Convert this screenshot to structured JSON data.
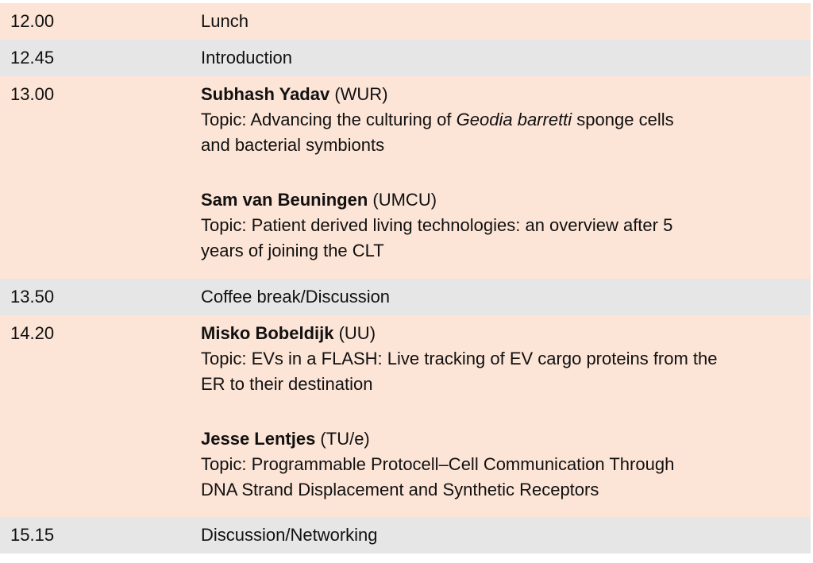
{
  "colors": {
    "session_row": "#fce4d6",
    "break_row": "#e7e6e6"
  },
  "rows": [
    {
      "time": "12.00",
      "title": "Lunch"
    },
    {
      "time": "12.45",
      "title": "Introduction"
    },
    {
      "time": "13.00",
      "talks": [
        {
          "speaker": "Subhash Yadav",
          "affiliation": " (WUR)",
          "topic_line1_a": "Topic: Advancing the culturing of ",
          "topic_line1_italic": "Geodia barretti",
          "topic_line1_b": " sponge cells",
          "topic_line2": "and bacterial symbionts"
        },
        {
          "speaker": "Sam van Beuningen",
          "affiliation": " (UMCU)",
          "topic_line1": "Topic: Patient derived living technologies: an overview after 5",
          "topic_line2": "years of joining the CLT"
        }
      ]
    },
    {
      "time": "13.50",
      "title": "Coffee break/Discussion"
    },
    {
      "time": "14.20",
      "talks": [
        {
          "speaker": "Misko Bobeldijk",
          "affiliation": " (UU)",
          "topic_line1": "Topic: EVs in a FLASH: Live tracking of EV cargo proteins from the",
          "topic_line2": "ER to their destination"
        },
        {
          "speaker": "Jesse Lentjes",
          "affiliation": " (TU/e)",
          "topic_line1": "Topic: Programmable Protocell–Cell Communication Through",
          "topic_line2": "DNA Strand Displacement and Synthetic Receptors"
        }
      ]
    },
    {
      "time": "15.15",
      "title": "Discussion/Networking"
    }
  ]
}
